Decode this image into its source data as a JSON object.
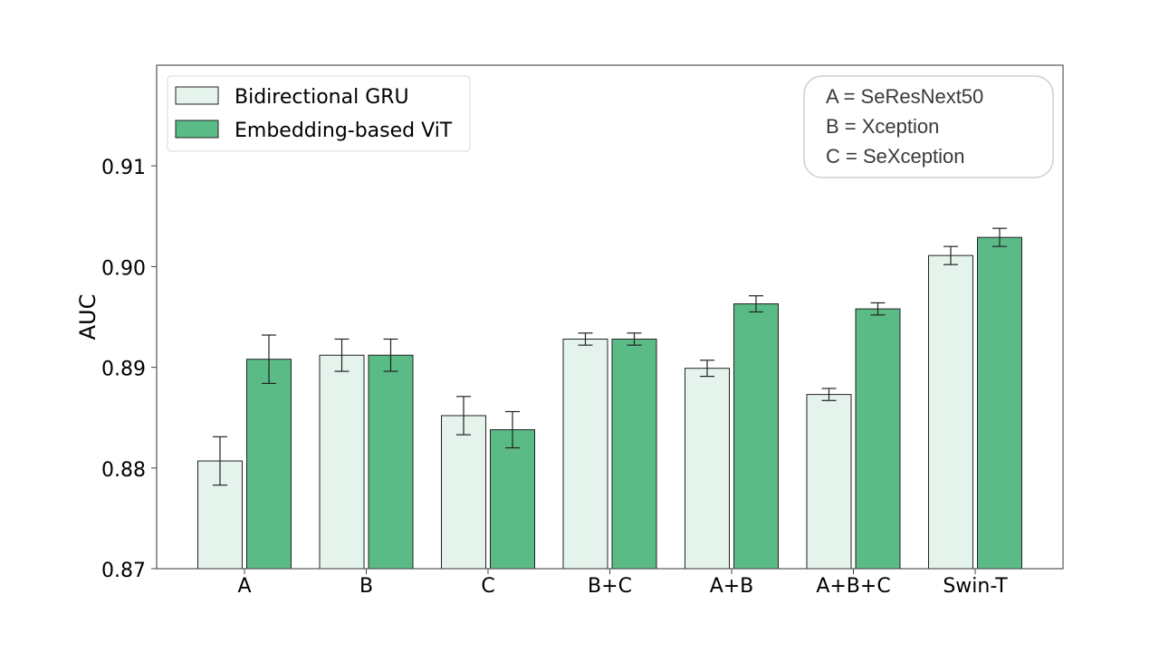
{
  "chart_data": {
    "type": "bar",
    "title": "",
    "xlabel": "",
    "ylabel": "AUC",
    "categories": [
      "A",
      "B",
      "C",
      "B+C",
      "A+B",
      "A+B+C",
      "Swin-T"
    ],
    "ylim": [
      0.87,
      0.92
    ],
    "yticks": [
      0.87,
      0.88,
      0.89,
      0.9,
      0.91
    ],
    "ytick_labels": [
      "0.87",
      "0.88",
      "0.89",
      "0.90",
      "0.91"
    ],
    "grid": false,
    "legend_position": "top-left",
    "series": [
      {
        "name": "Bidirectional GRU",
        "color": "#e4f3ec",
        "values": [
          0.8807,
          0.8912,
          0.8852,
          0.8928,
          0.8899,
          0.8873,
          0.9011
        ],
        "errors": [
          0.0024,
          0.0016,
          0.0019,
          0.0006,
          0.0008,
          0.0006,
          0.0009
        ]
      },
      {
        "name": "Embedding-based ViT",
        "color": "#5bbb86",
        "values": [
          0.8908,
          0.8912,
          0.8838,
          0.8928,
          0.8963,
          0.8958,
          0.9029
        ],
        "errors": [
          0.0024,
          0.0016,
          0.0018,
          0.0006,
          0.0008,
          0.0006,
          0.0009
        ]
      }
    ],
    "annotation": {
      "position": "top-right",
      "lines": [
        "A = SeResNext50",
        "B = Xception",
        "C = SeXception"
      ]
    }
  }
}
